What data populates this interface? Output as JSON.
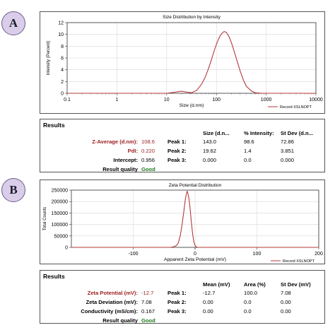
{
  "panel_a": {
    "label": "A",
    "results": {
      "title": "Results",
      "headers": [
        "Size (d.n...",
        "% Intensity:",
        "St Dev (d.n..."
      ],
      "left": [
        {
          "label": "Z-Average (d.nm):",
          "value": "108.6",
          "highlight": true
        },
        {
          "label": "PdI:",
          "value": "0.220",
          "highlight": true
        },
        {
          "label": "Intercept:",
          "value": "0.956",
          "highlight": false
        }
      ],
      "quality_label": "Result quality",
      "quality_value": "Good",
      "peaks": [
        {
          "label": "Peak 1:",
          "c1": "143.0",
          "c2": "98.6",
          "c3": "72.86"
        },
        {
          "label": "Peak 2:",
          "c1": "19.62",
          "c2": "1.4",
          "c3": "3.851"
        },
        {
          "label": "Peak 3:",
          "c1": "0.000",
          "c2": "0.0",
          "c3": "0.000"
        }
      ]
    }
  },
  "panel_b": {
    "label": "B",
    "results": {
      "title": "Results",
      "headers": [
        "Mean (mV)",
        "Area (%)",
        "St Dev (mV)"
      ],
      "left": [
        {
          "label": "Zeta Potential (mV):",
          "value": "-12.7",
          "highlight": true
        },
        {
          "label": "Zeta Deviation (mV):",
          "value": "7.08",
          "highlight": false
        },
        {
          "label": "Conductivity (mS/cm):",
          "value": "0.167",
          "highlight": false
        }
      ],
      "quality_label": "Result quality",
      "quality_value": "Good",
      "peaks": [
        {
          "label": "Peak 1:",
          "c1": "-12.7",
          "c2": "100.0",
          "c3": "7.08"
        },
        {
          "label": "Peak 2:",
          "c1": "0.00",
          "c2": "0.0",
          "c3": "0.00"
        },
        {
          "label": "Peak 3:",
          "c1": "0.00",
          "c2": "0.0",
          "c3": "0.00"
        }
      ]
    }
  },
  "chart_data": [
    {
      "type": "line",
      "title": "Size Distribution by Intensity",
      "xlabel": "Size (d.nm)",
      "ylabel": "Intensity (Percent)",
      "xscale": "log",
      "xlim": [
        0.1,
        10000
      ],
      "ylim": [
        0,
        12
      ],
      "xticks": [
        "0.1",
        "1",
        "10",
        "100",
        "1000",
        "10000"
      ],
      "yticks": [
        "0",
        "2",
        "4",
        "6",
        "8",
        "10",
        "12"
      ],
      "grid": true,
      "legend": "bottom-right",
      "line_color": "#b5393a",
      "series": [
        {
          "name": "Record XSLNOPT",
          "x": [
            0.1,
            10,
            15,
            19.6,
            25,
            32,
            40,
            50,
            60,
            70,
            80,
            90,
            100,
            110,
            120,
            130,
            143,
            160,
            180,
            200,
            230,
            260,
            300,
            350,
            400,
            500,
            600,
            800,
            1000,
            10000
          ],
          "y": [
            0,
            0,
            0.2,
            0.35,
            0.2,
            0.1,
            0.5,
            1.5,
            2.8,
            4.3,
            5.8,
            7.2,
            8.3,
            9.2,
            9.8,
            10.2,
            10.5,
            10.3,
            9.6,
            8.6,
            7.0,
            5.5,
            3.8,
            2.2,
            1.2,
            0.4,
            0.1,
            0,
            0,
            0
          ]
        }
      ]
    },
    {
      "type": "line",
      "title": "Zeta Potential Distribution",
      "xlabel": "Apparent Zeta Potential (mV)",
      "ylabel": "Total Counts",
      "xlim": [
        -200,
        200
      ],
      "ylim": [
        0,
        250000
      ],
      "xticks": [
        "-100",
        "0",
        "100",
        "200"
      ],
      "yticks": [
        "0",
        "50000",
        "100000",
        "150000",
        "200000",
        "250000"
      ],
      "grid": true,
      "legend": "bottom-right",
      "line_color": "#b5393a",
      "series": [
        {
          "name": "Record XSLNOPT",
          "x": [
            -200,
            -40,
            -35,
            -30,
            -27,
            -24,
            -21,
            -18,
            -16,
            -14,
            -13,
            -12.7,
            -12,
            -10,
            -8,
            -6,
            -4,
            -2,
            0,
            2,
            5,
            200
          ],
          "y": [
            0,
            0,
            2000,
            8000,
            20000,
            50000,
            100000,
            160000,
            205000,
            235000,
            243000,
            245000,
            240000,
            215000,
            170000,
            110000,
            60000,
            25000,
            8000,
            2000,
            0,
            0
          ]
        }
      ]
    }
  ]
}
